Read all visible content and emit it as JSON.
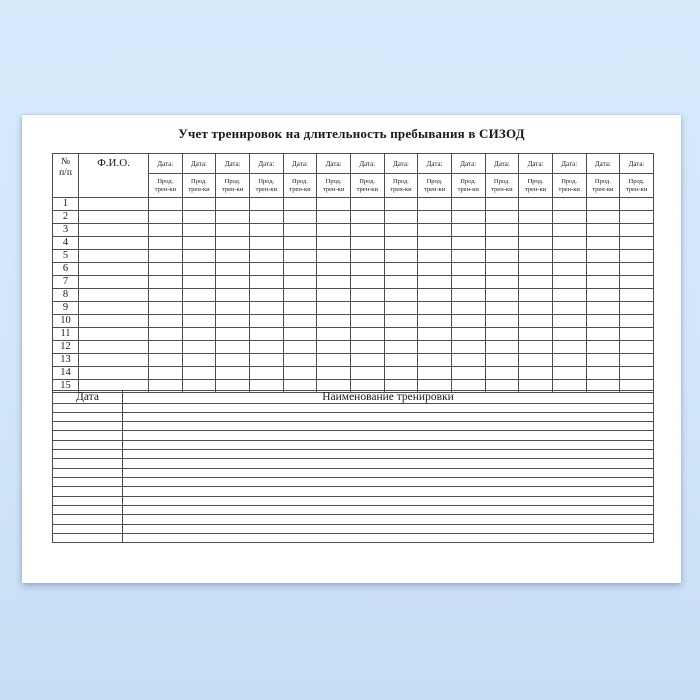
{
  "page": {
    "background_top": "#d7ebfd",
    "background_bottom": "#c8def4",
    "paper_color": "#ffffff",
    "grid_color": "#4d4d4d",
    "text_color": "#1a1a1a"
  },
  "title": "Учет тренировок на длительность пребывания в СИЗОД",
  "training_table": {
    "num_header_line1": "№",
    "num_header_line2": "п/п",
    "fio_header": "Ф.И.О.",
    "date_header": "Дата:",
    "duration_header_line1": "Прод.",
    "duration_header_line2": "трен-ки",
    "date_columns": 15,
    "row_numbers": [
      "1",
      "2",
      "3",
      "4",
      "5",
      "6",
      "7",
      "8",
      "9",
      "10",
      "11",
      "12",
      "13",
      "14",
      "15"
    ]
  },
  "log_table": {
    "date_header": "Дата",
    "name_header": "Наименование тренировки",
    "empty_rows": 15
  }
}
